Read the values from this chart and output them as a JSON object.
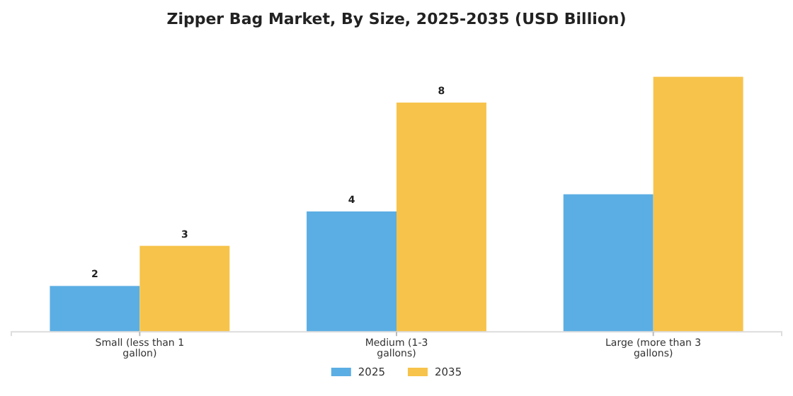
{
  "chart_data": {
    "type": "bar",
    "title": "Zipper Bag Market, By Size, 2025-2035 (USD Billion)",
    "categories": [
      "Small (less than 1 gallon)",
      "Medium (1-3 gallons)",
      "Large (more than 3 gallons)"
    ],
    "series": [
      {
        "name": "2025",
        "color": "#5baee3",
        "values": [
          1.6,
          4.2,
          4.8
        ],
        "value_labels": [
          "2",
          "4",
          null
        ]
      },
      {
        "name": "2035",
        "color": "#f7c34a",
        "values": [
          3.0,
          8.0,
          8.9
        ],
        "value_labels": [
          "3",
          "8",
          null
        ]
      }
    ],
    "tick_labels": "x",
    "legend": "bottom"
  }
}
